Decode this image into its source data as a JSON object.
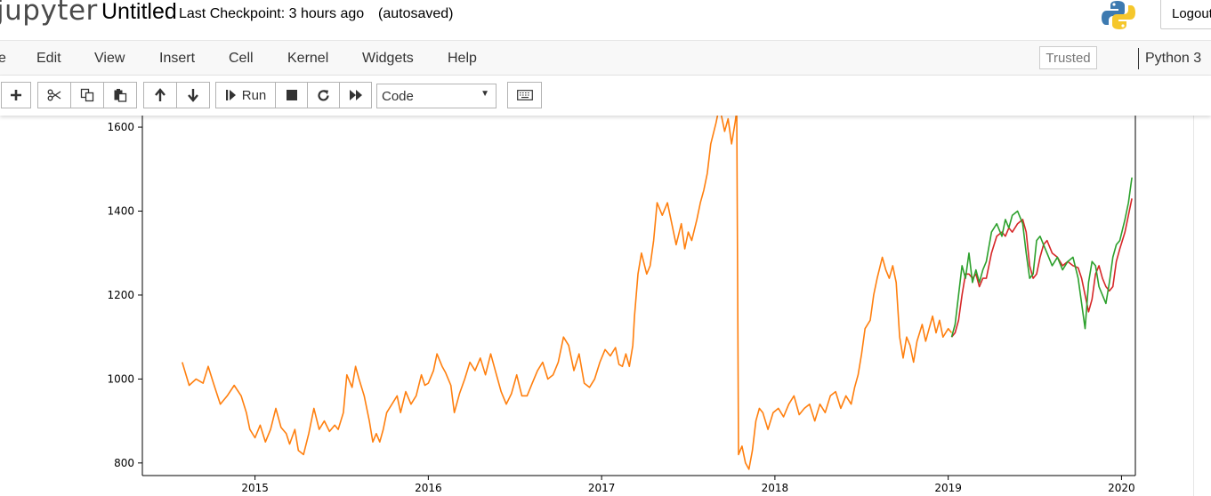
{
  "header": {
    "logo_text": "jupyter",
    "notebook_name": "Untitled",
    "checkpoint_text": "Last Checkpoint: 3 hours ago",
    "autosave_text": "(autosaved)",
    "logout_label": "Logout"
  },
  "menubar": {
    "items": [
      "e",
      "Edit",
      "View",
      "Insert",
      "Cell",
      "Kernel",
      "Widgets",
      "Help"
    ],
    "trusted_label": "Trusted",
    "kernel_name": "Python 3"
  },
  "toolbar": {
    "run_label": "Run",
    "cell_type": "Code",
    "icons": [
      "plus-icon",
      "cut-icon",
      "copy-icon",
      "paste-icon",
      "arrow-up-icon",
      "arrow-down-icon",
      "run-icon",
      "stop-icon",
      "restart-icon",
      "fast-forward-icon",
      "keyboard-icon"
    ]
  },
  "chart_data": {
    "type": "line",
    "title": "",
    "xlabel": "",
    "ylabel": "",
    "x_ticks": [
      "2015",
      "2016",
      "2017",
      "2018",
      "2019",
      "2020"
    ],
    "y_ticks": [
      "800",
      "1000",
      "1200",
      "1400",
      "1600"
    ],
    "ylim": [
      770,
      1670
    ],
    "xlim": [
      2014.35,
      2020.08
    ],
    "series": [
      {
        "color": "#ff7f0e",
        "points": [
          [
            2014.58,
            1040
          ],
          [
            2014.62,
            985
          ],
          [
            2014.66,
            1000
          ],
          [
            2014.7,
            990
          ],
          [
            2014.73,
            1030
          ],
          [
            2014.76,
            990
          ],
          [
            2014.8,
            940
          ],
          [
            2014.84,
            960
          ],
          [
            2014.88,
            985
          ],
          [
            2014.92,
            960
          ],
          [
            2014.95,
            920
          ],
          [
            2014.97,
            880
          ],
          [
            2015.0,
            860
          ],
          [
            2015.03,
            890
          ],
          [
            2015.06,
            850
          ],
          [
            2015.09,
            880
          ],
          [
            2015.12,
            930
          ],
          [
            2015.15,
            885
          ],
          [
            2015.18,
            870
          ],
          [
            2015.2,
            845
          ],
          [
            2015.23,
            880
          ],
          [
            2015.25,
            830
          ],
          [
            2015.28,
            820
          ],
          [
            2015.31,
            870
          ],
          [
            2015.34,
            930
          ],
          [
            2015.37,
            880
          ],
          [
            2015.4,
            900
          ],
          [
            2015.43,
            875
          ],
          [
            2015.46,
            890
          ],
          [
            2015.48,
            880
          ],
          [
            2015.51,
            920
          ],
          [
            2015.53,
            1010
          ],
          [
            2015.56,
            980
          ],
          [
            2015.58,
            1030
          ],
          [
            2015.6,
            1000
          ],
          [
            2015.63,
            960
          ],
          [
            2015.66,
            900
          ],
          [
            2015.68,
            850
          ],
          [
            2015.7,
            870
          ],
          [
            2015.72,
            850
          ],
          [
            2015.74,
            880
          ],
          [
            2015.76,
            920
          ],
          [
            2015.79,
            940
          ],
          [
            2015.82,
            960
          ],
          [
            2015.84,
            920
          ],
          [
            2015.87,
            970
          ],
          [
            2015.9,
            940
          ],
          [
            2015.93,
            960
          ],
          [
            2015.96,
            1010
          ],
          [
            2015.98,
            985
          ],
          [
            2016.0,
            990
          ],
          [
            2016.03,
            1020
          ],
          [
            2016.05,
            1060
          ],
          [
            2016.08,
            1030
          ],
          [
            2016.1,
            1015
          ],
          [
            2016.13,
            985
          ],
          [
            2016.15,
            920
          ],
          [
            2016.18,
            965
          ],
          [
            2016.21,
            1000
          ],
          [
            2016.24,
            1040
          ],
          [
            2016.27,
            1020
          ],
          [
            2016.3,
            1050
          ],
          [
            2016.33,
            1010
          ],
          [
            2016.36,
            1060
          ],
          [
            2016.39,
            1015
          ],
          [
            2016.42,
            970
          ],
          [
            2016.45,
            940
          ],
          [
            2016.48,
            965
          ],
          [
            2016.51,
            1010
          ],
          [
            2016.54,
            960
          ],
          [
            2016.57,
            960
          ],
          [
            2016.6,
            990
          ],
          [
            2016.63,
            1020
          ],
          [
            2016.66,
            1040
          ],
          [
            2016.69,
            1000
          ],
          [
            2016.72,
            1010
          ],
          [
            2016.75,
            1040
          ],
          [
            2016.78,
            1100
          ],
          [
            2016.81,
            1080
          ],
          [
            2016.84,
            1020
          ],
          [
            2016.87,
            1060
          ],
          [
            2016.9,
            990
          ],
          [
            2016.93,
            980
          ],
          [
            2016.96,
            1000
          ],
          [
            2016.99,
            1040
          ],
          [
            2017.02,
            1070
          ],
          [
            2017.05,
            1055
          ],
          [
            2017.08,
            1075
          ],
          [
            2017.1,
            1035
          ],
          [
            2017.12,
            1030
          ],
          [
            2017.14,
            1060
          ],
          [
            2017.16,
            1030
          ],
          [
            2017.18,
            1080
          ],
          [
            2017.19,
            1150
          ],
          [
            2017.21,
            1250
          ],
          [
            2017.23,
            1300
          ],
          [
            2017.26,
            1250
          ],
          [
            2017.28,
            1270
          ],
          [
            2017.3,
            1330
          ],
          [
            2017.32,
            1420
          ],
          [
            2017.35,
            1390
          ],
          [
            2017.38,
            1420
          ],
          [
            2017.41,
            1360
          ],
          [
            2017.43,
            1320
          ],
          [
            2017.46,
            1370
          ],
          [
            2017.48,
            1310
          ],
          [
            2017.5,
            1350
          ],
          [
            2017.52,
            1330
          ],
          [
            2017.55,
            1380
          ],
          [
            2017.57,
            1420
          ],
          [
            2017.59,
            1450
          ],
          [
            2017.61,
            1490
          ],
          [
            2017.63,
            1560
          ],
          [
            2017.66,
            1610
          ],
          [
            2017.68,
            1650
          ],
          [
            2017.71,
            1590
          ],
          [
            2017.73,
            1620
          ],
          [
            2017.75,
            1560
          ],
          [
            2017.77,
            1610
          ],
          [
            2017.78,
            1640
          ],
          [
            2017.79,
            820
          ],
          [
            2017.81,
            840
          ],
          [
            2017.83,
            800
          ],
          [
            2017.85,
            785
          ],
          [
            2017.87,
            830
          ],
          [
            2017.89,
            900
          ],
          [
            2017.91,
            930
          ],
          [
            2017.93,
            920
          ],
          [
            2017.96,
            880
          ],
          [
            2017.99,
            920
          ],
          [
            2018.02,
            930
          ],
          [
            2018.05,
            910
          ],
          [
            2018.08,
            940
          ],
          [
            2018.11,
            960
          ],
          [
            2018.14,
            915
          ],
          [
            2018.17,
            930
          ],
          [
            2018.2,
            940
          ],
          [
            2018.23,
            900
          ],
          [
            2018.26,
            940
          ],
          [
            2018.29,
            920
          ],
          [
            2018.32,
            960
          ],
          [
            2018.35,
            970
          ],
          [
            2018.38,
            930
          ],
          [
            2018.41,
            960
          ],
          [
            2018.44,
            940
          ],
          [
            2018.46,
            980
          ],
          [
            2018.48,
            1010
          ],
          [
            2018.5,
            1060
          ],
          [
            2018.52,
            1120
          ],
          [
            2018.55,
            1140
          ],
          [
            2018.57,
            1200
          ],
          [
            2018.59,
            1240
          ],
          [
            2018.62,
            1290
          ],
          [
            2018.64,
            1260
          ],
          [
            2018.66,
            1240
          ],
          [
            2018.68,
            1270
          ],
          [
            2018.7,
            1230
          ],
          [
            2018.72,
            1100
          ],
          [
            2018.74,
            1050
          ],
          [
            2018.76,
            1100
          ],
          [
            2018.78,
            1080
          ],
          [
            2018.8,
            1040
          ],
          [
            2018.82,
            1090
          ],
          [
            2018.85,
            1130
          ],
          [
            2018.87,
            1090
          ],
          [
            2018.89,
            1120
          ],
          [
            2018.91,
            1150
          ],
          [
            2018.93,
            1110
          ],
          [
            2018.95,
            1140
          ],
          [
            2018.97,
            1100
          ],
          [
            2019.0,
            1120
          ],
          [
            2019.02,
            1110
          ]
        ]
      },
      {
        "color": "#d62728",
        "points": [
          [
            2019.02,
            1100
          ],
          [
            2019.04,
            1110
          ],
          [
            2019.06,
            1140
          ],
          [
            2019.08,
            1200
          ],
          [
            2019.1,
            1250
          ],
          [
            2019.12,
            1250
          ],
          [
            2019.14,
            1240
          ],
          [
            2019.16,
            1250
          ],
          [
            2019.18,
            1220
          ],
          [
            2019.2,
            1240
          ],
          [
            2019.22,
            1240
          ],
          [
            2019.25,
            1300
          ],
          [
            2019.28,
            1340
          ],
          [
            2019.31,
            1350
          ],
          [
            2019.33,
            1340
          ],
          [
            2019.35,
            1360
          ],
          [
            2019.37,
            1350
          ],
          [
            2019.4,
            1370
          ],
          [
            2019.43,
            1380
          ],
          [
            2019.45,
            1350
          ],
          [
            2019.47,
            1270
          ],
          [
            2019.49,
            1240
          ],
          [
            2019.51,
            1250
          ],
          [
            2019.53,
            1290
          ],
          [
            2019.55,
            1320
          ],
          [
            2019.57,
            1330
          ],
          [
            2019.6,
            1300
          ],
          [
            2019.63,
            1290
          ],
          [
            2019.66,
            1270
          ],
          [
            2019.69,
            1280
          ],
          [
            2019.72,
            1270
          ],
          [
            2019.75,
            1265
          ],
          [
            2019.77,
            1240
          ],
          [
            2019.79,
            1200
          ],
          [
            2019.81,
            1160
          ],
          [
            2019.83,
            1190
          ],
          [
            2019.85,
            1250
          ],
          [
            2019.87,
            1270
          ],
          [
            2019.89,
            1240
          ],
          [
            2019.91,
            1220
          ],
          [
            2019.93,
            1210
          ],
          [
            2019.95,
            1220
          ],
          [
            2019.97,
            1280
          ],
          [
            2019.99,
            1310
          ],
          [
            2020.02,
            1350
          ],
          [
            2020.04,
            1390
          ],
          [
            2020.06,
            1430
          ]
        ]
      },
      {
        "color": "#2ca02c",
        "points": [
          [
            2019.02,
            1100
          ],
          [
            2019.04,
            1130
          ],
          [
            2019.06,
            1200
          ],
          [
            2019.08,
            1270
          ],
          [
            2019.1,
            1240
          ],
          [
            2019.12,
            1300
          ],
          [
            2019.14,
            1230
          ],
          [
            2019.16,
            1260
          ],
          [
            2019.18,
            1230
          ],
          [
            2019.2,
            1260
          ],
          [
            2019.22,
            1280
          ],
          [
            2019.25,
            1350
          ],
          [
            2019.28,
            1370
          ],
          [
            2019.31,
            1340
          ],
          [
            2019.33,
            1380
          ],
          [
            2019.35,
            1360
          ],
          [
            2019.37,
            1390
          ],
          [
            2019.4,
            1400
          ],
          [
            2019.43,
            1370
          ],
          [
            2019.45,
            1300
          ],
          [
            2019.47,
            1240
          ],
          [
            2019.49,
            1250
          ],
          [
            2019.51,
            1330
          ],
          [
            2019.53,
            1340
          ],
          [
            2019.55,
            1320
          ],
          [
            2019.57,
            1300
          ],
          [
            2019.6,
            1270
          ],
          [
            2019.63,
            1290
          ],
          [
            2019.66,
            1260
          ],
          [
            2019.69,
            1280
          ],
          [
            2019.72,
            1290
          ],
          [
            2019.75,
            1240
          ],
          [
            2019.77,
            1180
          ],
          [
            2019.79,
            1120
          ],
          [
            2019.81,
            1230
          ],
          [
            2019.83,
            1280
          ],
          [
            2019.85,
            1270
          ],
          [
            2019.87,
            1220
          ],
          [
            2019.89,
            1200
          ],
          [
            2019.91,
            1180
          ],
          [
            2019.93,
            1230
          ],
          [
            2019.95,
            1290
          ],
          [
            2019.97,
            1320
          ],
          [
            2019.99,
            1330
          ],
          [
            2020.02,
            1380
          ],
          [
            2020.04,
            1420
          ],
          [
            2020.06,
            1480
          ]
        ]
      }
    ]
  }
}
